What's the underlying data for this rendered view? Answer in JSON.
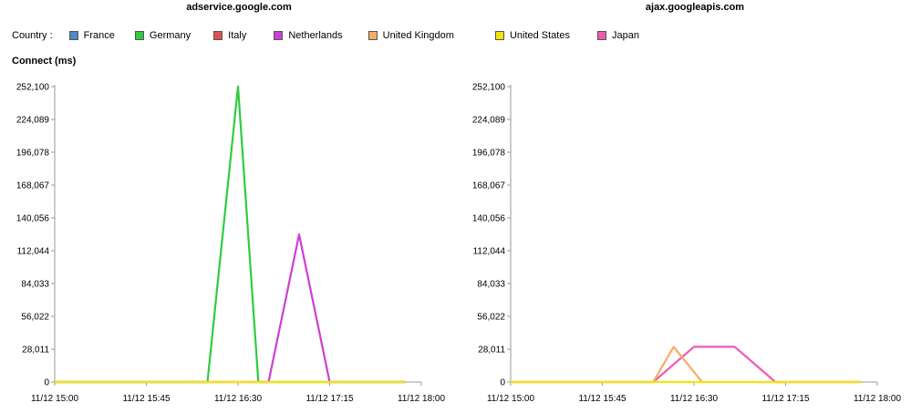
{
  "legend": {
    "label": "Country :",
    "entries": [
      {
        "name": "France",
        "color": "#4f86c6"
      },
      {
        "name": "Germany",
        "color": "#2fcc3f"
      },
      {
        "name": "Italy",
        "color": "#e05050"
      },
      {
        "name": "Netherlands",
        "color": "#cc3fd6"
      },
      {
        "name": "United Kingdom",
        "color": "#f3ad61"
      },
      {
        "name": "United States",
        "color": "#f2e40e"
      },
      {
        "name": "Japan",
        "color": "#ef5ab4"
      }
    ]
  },
  "metric_label": "Connect (ms)",
  "chart_data": [
    {
      "type": "line",
      "title": "adservice.google.com",
      "ylabel": "Connect (ms)",
      "ylim": [
        0,
        252100
      ],
      "yticks": [
        "0",
        "28,011",
        "56,022",
        "84,033",
        "112,044",
        "140,056",
        "168,067",
        "196,078",
        "224,089",
        "252,100"
      ],
      "xlim": [
        "11/12 15:00",
        "11/12 18:00"
      ],
      "xticks": [
        "11/12 15:00",
        "11/12 15:45",
        "11/12 16:30",
        "11/12 17:15",
        "11/12 18:00"
      ],
      "series": [
        {
          "name": "Germany",
          "color": "#2fcc3f",
          "x": [
            "11/12 15:00",
            "11/12 16:15",
            "11/12 16:30",
            "11/12 16:40",
            "11/12 17:52"
          ],
          "y": [
            0,
            0,
            252100,
            0,
            0
          ]
        },
        {
          "name": "Netherlands",
          "color": "#cc3fd6",
          "x": [
            "11/12 15:00",
            "11/12 16:45",
            "11/12 17:00",
            "11/12 17:15",
            "11/12 17:52"
          ],
          "y": [
            0,
            0,
            126000,
            0,
            0
          ]
        },
        {
          "name": "United Kingdom",
          "color": "#f3ad61",
          "x": [
            "11/12 15:00",
            "11/12 17:52"
          ],
          "y": [
            0,
            0
          ]
        },
        {
          "name": "United States",
          "color": "#f2e40e",
          "x": [
            "11/12 15:00",
            "11/12 17:52"
          ],
          "y": [
            0,
            0
          ]
        }
      ]
    },
    {
      "type": "line",
      "title": "ajax.googleapis.com",
      "ylabel": "Connect (ms)",
      "ylim": [
        0,
        252100
      ],
      "yticks": [
        "0",
        "28,011",
        "56,022",
        "84,033",
        "112,044",
        "140,056",
        "168,067",
        "196,078",
        "224,089",
        "252,100"
      ],
      "xlim": [
        "11/12 15:00",
        "11/12 18:00"
      ],
      "xticks": [
        "11/12 15:00",
        "11/12 15:45",
        "11/12 16:30",
        "11/12 17:15",
        "11/12 18:00"
      ],
      "series": [
        {
          "name": "Japan",
          "color": "#ef5ab4",
          "x": [
            "11/12 15:00",
            "11/12 16:10",
            "11/12 16:30",
            "11/12 16:50",
            "11/12 17:10",
            "11/12 17:52"
          ],
          "y": [
            0,
            0,
            30000,
            30000,
            0,
            0
          ]
        },
        {
          "name": "United Kingdom",
          "color": "#f3ad61",
          "x": [
            "11/12 15:00",
            "11/12 16:10",
            "11/12 16:20",
            "11/12 16:34",
            "11/12 17:52"
          ],
          "y": [
            0,
            0,
            30000,
            0,
            0
          ]
        },
        {
          "name": "United States",
          "color": "#f2e40e",
          "x": [
            "11/12 15:00",
            "11/12 17:52"
          ],
          "y": [
            0,
            0
          ]
        }
      ]
    }
  ]
}
